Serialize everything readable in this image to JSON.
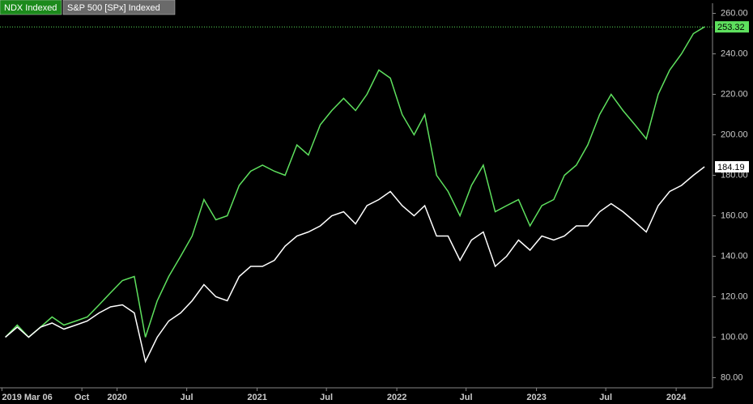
{
  "chart_data": {
    "type": "line",
    "x": [
      "2019-03",
      "2019-04",
      "2019-05",
      "2019-06",
      "2019-07",
      "2019-08",
      "2019-09",
      "2019-10",
      "2019-11",
      "2019-12",
      "2020-01",
      "2020-02",
      "2020-03",
      "2020-04",
      "2020-05",
      "2020-06",
      "2020-07",
      "2020-08",
      "2020-09",
      "2020-10",
      "2020-11",
      "2020-12",
      "2021-01",
      "2021-02",
      "2021-03",
      "2021-04",
      "2021-05",
      "2021-06",
      "2021-07",
      "2021-08",
      "2021-09",
      "2021-10",
      "2021-11",
      "2021-12",
      "2022-01",
      "2022-02",
      "2022-03",
      "2022-04",
      "2022-05",
      "2022-06",
      "2022-07",
      "2022-08",
      "2022-09",
      "2022-10",
      "2022-11",
      "2022-12",
      "2023-01",
      "2023-02",
      "2023-03",
      "2023-04",
      "2023-05",
      "2023-06",
      "2023-07",
      "2023-08",
      "2023-09",
      "2023-10",
      "2023-11",
      "2023-12",
      "2024-01",
      "2024-02",
      "2024-03"
    ],
    "series": [
      {
        "name": "NDX Indexed",
        "color": "#5ee05e",
        "values": [
          100,
          106,
          100,
          105,
          110,
          106,
          108,
          110,
          116,
          122,
          128,
          130,
          100,
          118,
          130,
          140,
          150,
          168,
          158,
          160,
          175,
          182,
          185,
          182,
          180,
          195,
          190,
          205,
          212,
          218,
          212,
          220,
          232,
          228,
          210,
          200,
          210,
          180,
          172,
          160,
          175,
          185,
          162,
          165,
          168,
          155,
          165,
          168,
          180,
          185,
          195,
          210,
          220,
          212,
          205,
          198,
          220,
          232,
          240,
          250,
          253.32
        ]
      },
      {
        "name": "S&P 500 [SPx] Indexed",
        "color": "#ffffff",
        "values": [
          100,
          105,
          100,
          105,
          107,
          104,
          106,
          108,
          112,
          115,
          116,
          112,
          88,
          100,
          108,
          112,
          118,
          126,
          120,
          118,
          130,
          135,
          135,
          138,
          145,
          150,
          152,
          155,
          160,
          162,
          156,
          165,
          168,
          172,
          165,
          160,
          165,
          150,
          150,
          138,
          148,
          152,
          135,
          140,
          148,
          143,
          150,
          148,
          150,
          155,
          155,
          162,
          166,
          162,
          157,
          152,
          165,
          172,
          175,
          180,
          184.19
        ]
      }
    ],
    "xlim": [
      "2019-03-01",
      "2024-04-05"
    ],
    "xticks": [
      {
        "value": "2019-03-06",
        "label": "2019 Mar 06"
      },
      {
        "value": "2019-10-01",
        "label": "Oct"
      },
      {
        "value": "2020-01-01",
        "label": "2020"
      },
      {
        "value": "2020-07-01",
        "label": "Jul"
      },
      {
        "value": "2021-01-01",
        "label": "2021"
      },
      {
        "value": "2021-07-01",
        "label": "Jul"
      },
      {
        "value": "2022-01-01",
        "label": "2022"
      },
      {
        "value": "2022-07-01",
        "label": "Jul"
      },
      {
        "value": "2023-01-01",
        "label": "2023"
      },
      {
        "value": "2023-07-01",
        "label": "Jul"
      },
      {
        "value": "2024-01-01",
        "label": "2024"
      }
    ],
    "ylim": [
      75,
      265
    ],
    "yticks": [
      {
        "value": 80,
        "label": "80.00"
      },
      {
        "value": 100,
        "label": "100.00"
      },
      {
        "value": 120,
        "label": "120.00"
      },
      {
        "value": 140,
        "label": "140.00"
      },
      {
        "value": 160,
        "label": "160.00"
      },
      {
        "value": 180,
        "label": "180.00"
      },
      {
        "value": 200,
        "label": "200.00"
      },
      {
        "value": 220,
        "label": "220.00"
      },
      {
        "value": 240,
        "label": "240.00"
      },
      {
        "value": 260,
        "label": "260.00"
      }
    ],
    "grid": false
  }
}
